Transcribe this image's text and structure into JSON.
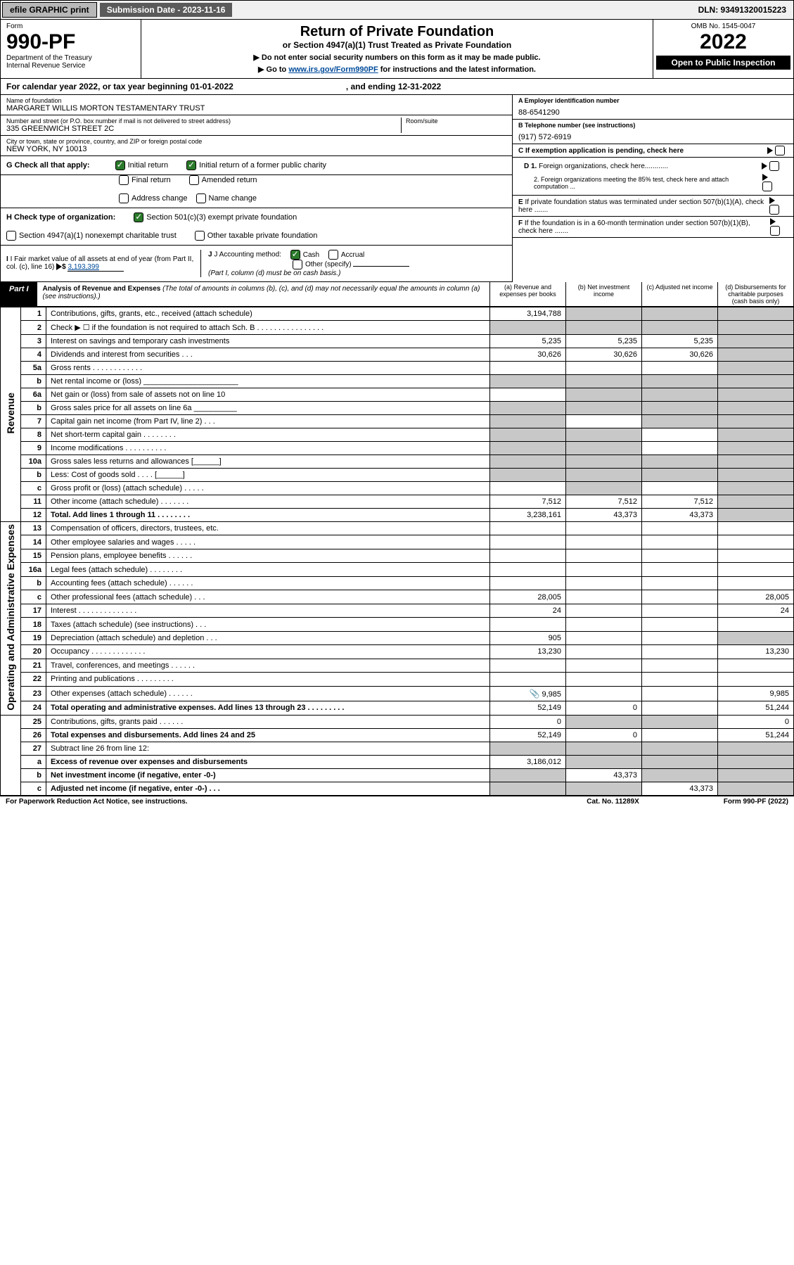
{
  "top_bar": {
    "efile": "efile GRAPHIC print",
    "sub_date": "Submission Date - 2023-11-16",
    "dln": "DLN: 93491320015223"
  },
  "header": {
    "form_label": "Form",
    "form_no": "990-PF",
    "dept": "Department of the Treasury",
    "irs": "Internal Revenue Service",
    "title": "Return of Private Foundation",
    "subtitle": "or Section 4947(a)(1) Trust Treated as Private Foundation",
    "instr1": "▶ Do not enter social security numbers on this form as it may be made public.",
    "instr2_pre": "▶ Go to ",
    "instr2_link": "www.irs.gov/Form990PF",
    "instr2_post": " for instructions and the latest information.",
    "omb": "OMB No. 1545-0047",
    "year": "2022",
    "open": "Open to Public Inspection"
  },
  "cal_year": {
    "text": "For calendar year 2022, or tax year beginning 01-01-2022",
    "end": ", and ending 12-31-2022"
  },
  "info": {
    "name_lbl": "Name of foundation",
    "name_val": "MARGARET WILLIS MORTON TESTAMENTARY TRUST",
    "addr_lbl": "Number and street (or P.O. box number if mail is not delivered to street address)",
    "addr_val": "335 GREENWICH STREET 2C",
    "room_lbl": "Room/suite",
    "city_lbl": "City or town, state or province, country, and ZIP or foreign postal code",
    "city_val": "NEW YORK, NY  10013",
    "a_lbl": "A Employer identification number",
    "a_val": "88-6541290",
    "b_lbl": "B Telephone number (see instructions)",
    "b_val": "(917) 572-6919",
    "c_lbl": "C If exemption application is pending, check here",
    "d1": "D 1. Foreign organizations, check here............",
    "d2": "2. Foreign organizations meeting the 85% test, check here and attach computation ...",
    "e_lbl": "E If private foundation status was terminated under section 507(b)(1)(A), check here .......",
    "f_lbl": "F If the foundation is in a 60-month termination under section 507(b)(1)(B), check here .......",
    "g_lbl": "G Check all that apply:",
    "g_opts": [
      "Initial return",
      "Initial return of a former public charity",
      "Final return",
      "Amended return",
      "Address change",
      "Name change"
    ],
    "h_lbl": "H Check type of organization:",
    "h_opts": [
      "Section 501(c)(3) exempt private foundation",
      "Section 4947(a)(1) nonexempt charitable trust",
      "Other taxable private foundation"
    ],
    "i_lbl": "I Fair market value of all assets at end of year (from Part II, col. (c), line 16)",
    "i_val": "3,193,399",
    "j_lbl": "J Accounting method:",
    "j_opts": [
      "Cash",
      "Accrual",
      "Other (specify)"
    ],
    "j_note": "(Part I, column (d) must be on cash basis.)"
  },
  "part1": {
    "label": "Part I",
    "title": "Analysis of Revenue and Expenses",
    "note": "(The total of amounts in columns (b), (c), and (d) may not necessarily equal the amounts in column (a) (see instructions).)",
    "cols": [
      "(a)   Revenue and expenses per books",
      "(b)   Net investment income",
      "(c)   Adjusted net income",
      "(d)   Disbursements for charitable purposes (cash basis only)"
    ]
  },
  "vside": {
    "rev": "Revenue",
    "exp": "Operating and Administrative Expenses"
  },
  "rows": [
    {
      "n": "1",
      "d": "Contributions, gifts, grants, etc., received (attach schedule)",
      "a": "3,194,788",
      "b": "g",
      "c": "g",
      "dd": "g"
    },
    {
      "n": "2",
      "d": "Check ▶ ☐ if the foundation is not required to attach Sch. B    .  .  .  .  .  .  .  .  .  .  .  .  .  .  .  .",
      "a": "g",
      "b": "g",
      "c": "g",
      "dd": "g"
    },
    {
      "n": "3",
      "d": "Interest on savings and temporary cash investments",
      "a": "5,235",
      "b": "5,235",
      "c": "5,235",
      "dd": "g"
    },
    {
      "n": "4",
      "d": "Dividends and interest from securities      .    .    .",
      "a": "30,626",
      "b": "30,626",
      "c": "30,626",
      "dd": "g"
    },
    {
      "n": "5a",
      "d": "Gross rents      .    .    .    .    .    .    .    .    .    .    .    .",
      "a": "",
      "b": "",
      "c": "",
      "dd": "g"
    },
    {
      "n": "b",
      "d": "Net rental income or (loss) ______________________",
      "a": "g",
      "b": "g",
      "c": "g",
      "dd": "g"
    },
    {
      "n": "6a",
      "d": "Net gain or (loss) from sale of assets not on line 10",
      "a": "",
      "b": "g",
      "c": "g",
      "dd": "g"
    },
    {
      "n": "b",
      "d": "Gross sales price for all assets on line 6a __________",
      "a": "g",
      "b": "g",
      "c": "g",
      "dd": "g"
    },
    {
      "n": "7",
      "d": "Capital gain net income (from Part IV, line 2)    .    .    .",
      "a": "g",
      "b": "",
      "c": "g",
      "dd": "g"
    },
    {
      "n": "8",
      "d": "Net short-term capital gain   .    .    .    .    .    .    .    .",
      "a": "g",
      "b": "g",
      "c": "",
      "dd": "g"
    },
    {
      "n": "9",
      "d": "Income modifications  .    .    .    .    .    .    .    .    .    .",
      "a": "g",
      "b": "g",
      "c": "",
      "dd": "g"
    },
    {
      "n": "10a",
      "d": "Gross sales less returns and allowances  [______]",
      "a": "g",
      "b": "g",
      "c": "g",
      "dd": "g"
    },
    {
      "n": "b",
      "d": "Less: Cost of goods sold      .    .    .    .    [______]",
      "a": "g",
      "b": "g",
      "c": "g",
      "dd": "g"
    },
    {
      "n": "c",
      "d": "Gross profit or (loss) (attach schedule)      .    .    .    .    .",
      "a": "",
      "b": "g",
      "c": "",
      "dd": "g"
    },
    {
      "n": "11",
      "d": "Other income (attach schedule)    .    .    .    .    .    .    .",
      "a": "7,512",
      "b": "7,512",
      "c": "7,512",
      "dd": "g"
    },
    {
      "n": "12",
      "d": "Total. Add lines 1 through 11    .    .    .    .    .    .    .    .",
      "a": "3,238,161",
      "b": "43,373",
      "c": "43,373",
      "dd": "g",
      "bold": true
    },
    {
      "n": "13",
      "d": "Compensation of officers, directors, trustees, etc.",
      "a": "",
      "b": "",
      "c": "",
      "dd": ""
    },
    {
      "n": "14",
      "d": "Other employee salaries and wages    .    .    .    .    .",
      "a": "",
      "b": "",
      "c": "",
      "dd": ""
    },
    {
      "n": "15",
      "d": "Pension plans, employee benefits  .    .    .    .    .    .",
      "a": "",
      "b": "",
      "c": "",
      "dd": ""
    },
    {
      "n": "16a",
      "d": "Legal fees (attach schedule)  .    .    .    .    .    .    .    .",
      "a": "",
      "b": "",
      "c": "",
      "dd": ""
    },
    {
      "n": "b",
      "d": "Accounting fees (attach schedule)  .    .    .    .    .    .",
      "a": "",
      "b": "",
      "c": "",
      "dd": ""
    },
    {
      "n": "c",
      "d": "Other professional fees (attach schedule)    .    .    .",
      "a": "28,005",
      "b": "",
      "c": "",
      "dd": "28,005"
    },
    {
      "n": "17",
      "d": "Interest  .    .    .    .    .    .    .    .    .    .    .    .    .    .",
      "a": "24",
      "b": "",
      "c": "",
      "dd": "24"
    },
    {
      "n": "18",
      "d": "Taxes (attach schedule) (see instructions)      .    .    .",
      "a": "",
      "b": "",
      "c": "",
      "dd": ""
    },
    {
      "n": "19",
      "d": "Depreciation (attach schedule) and depletion    .    .    .",
      "a": "905",
      "b": "",
      "c": "",
      "dd": "g"
    },
    {
      "n": "20",
      "d": "Occupancy  .    .    .    .    .    .    .    .    .    .    .    .    .",
      "a": "13,230",
      "b": "",
      "c": "",
      "dd": "13,230"
    },
    {
      "n": "21",
      "d": "Travel, conferences, and meetings  .    .    .    .    .    .",
      "a": "",
      "b": "",
      "c": "",
      "dd": ""
    },
    {
      "n": "22",
      "d": "Printing and publications  .    .    .    .    .    .    .    .    .",
      "a": "",
      "b": "",
      "c": "",
      "dd": ""
    },
    {
      "n": "23",
      "d": "Other expenses (attach schedule)  .    .    .    .    .    .",
      "a": "9,985",
      "b": "",
      "c": "",
      "dd": "9,985",
      "glyph": true
    },
    {
      "n": "24",
      "d": "Total operating and administrative expenses. Add lines 13 through 23    .    .    .    .    .    .    .    .    .",
      "a": "52,149",
      "b": "0",
      "c": "",
      "dd": "51,244",
      "bold": true
    },
    {
      "n": "25",
      "d": "Contributions, gifts, grants paid      .    .    .    .    .    .",
      "a": "0",
      "b": "g",
      "c": "g",
      "dd": "0"
    },
    {
      "n": "26",
      "d": "Total expenses and disbursements. Add lines 24 and 25",
      "a": "52,149",
      "b": "0",
      "c": "",
      "dd": "51,244",
      "bold": true
    },
    {
      "n": "27",
      "d": "Subtract line 26 from line 12:",
      "a": "g",
      "b": "g",
      "c": "g",
      "dd": "g"
    },
    {
      "n": "a",
      "d": "Excess of revenue over expenses and disbursements",
      "a": "3,186,012",
      "b": "g",
      "c": "g",
      "dd": "g",
      "bold": true
    },
    {
      "n": "b",
      "d": "Net investment income (if negative, enter -0-)",
      "a": "g",
      "b": "43,373",
      "c": "g",
      "dd": "g",
      "bold": true
    },
    {
      "n": "c",
      "d": "Adjusted net income (if negative, enter -0-)    .    .    .",
      "a": "g",
      "b": "g",
      "c": "43,373",
      "dd": "g",
      "bold": true
    }
  ],
  "footer": {
    "left": "For Paperwork Reduction Act Notice, see instructions.",
    "mid": "Cat. No. 11289X",
    "right": "Form 990-PF (2022)"
  }
}
